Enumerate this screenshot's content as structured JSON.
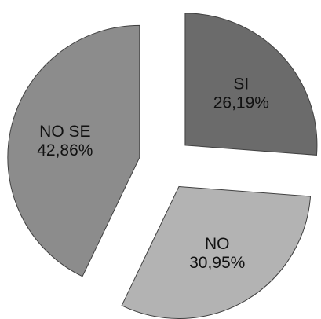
{
  "chart_data": {
    "type": "pie",
    "categories": [
      "SI",
      "NO",
      "NO SE"
    ],
    "values": [
      26.19,
      30.95,
      42.86
    ],
    "value_labels": [
      "26,19%",
      "30,95%",
      "42,86%"
    ],
    "unit": "%",
    "exploded": true,
    "legend": "none",
    "colors": [
      "#6b6b6b",
      "#b3b3b3",
      "#8c8c8c"
    ]
  }
}
